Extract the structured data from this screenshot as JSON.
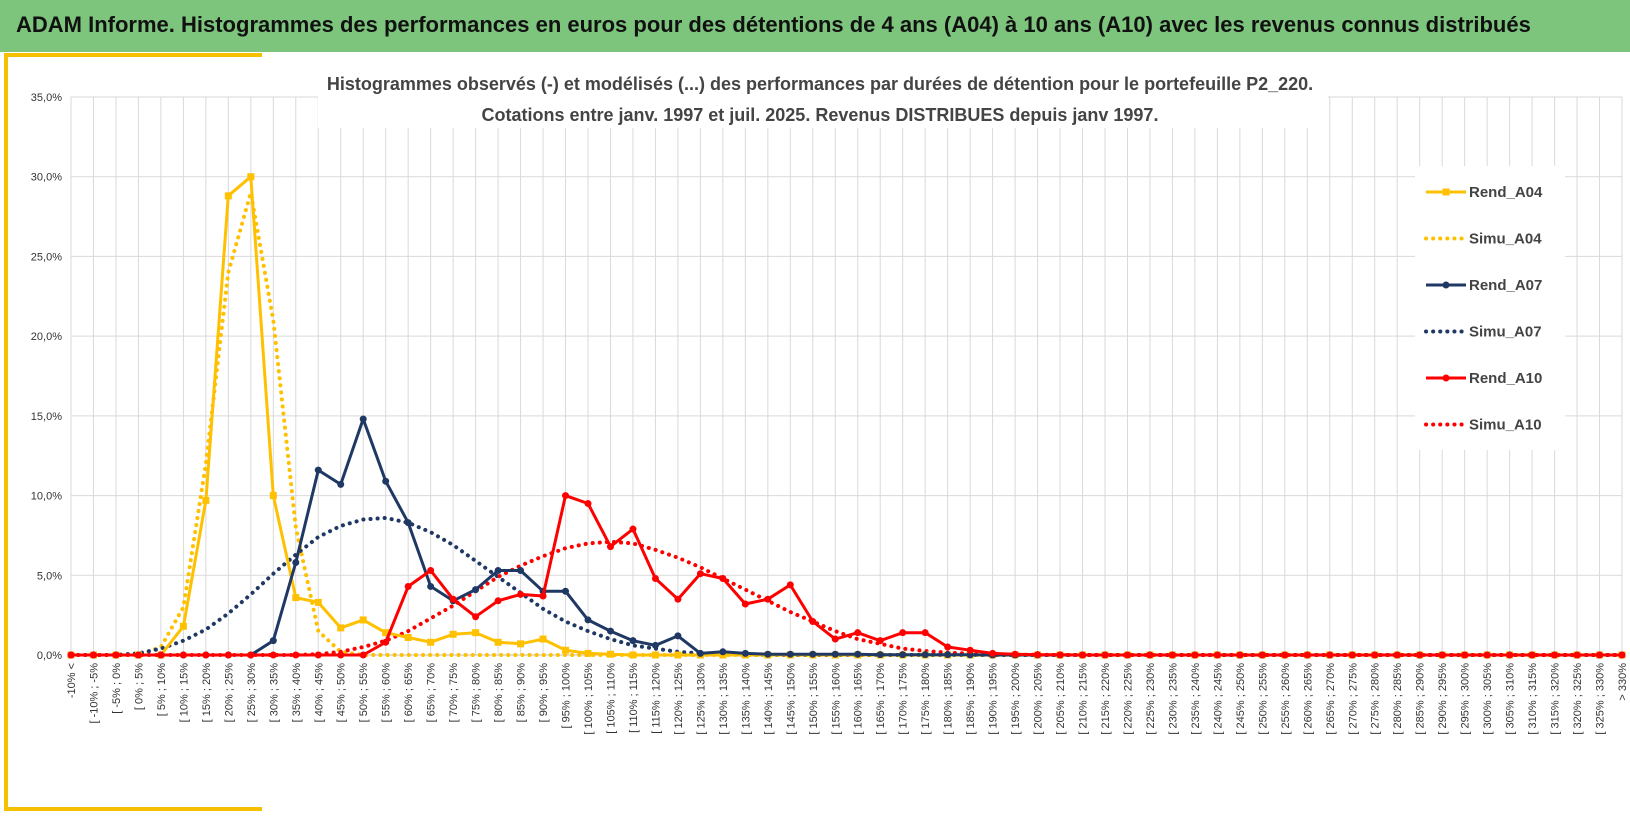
{
  "header": {
    "title": "ADAM Informe. Histogrammes des performances en euros pour des détentions de 4 ans (A04) à 10 ans (A10) avec les revenus connus distribués"
  },
  "colors": {
    "header_bg": "#7dc47d",
    "frame_accent": "#f5c000",
    "a04": "#ffc000",
    "a07": "#1f3864",
    "a10": "#ff0000",
    "grid": "#d9d9d9"
  },
  "chart_data": {
    "type": "line",
    "title_lines": [
      "Histogrammes observés (-) et modélisés (...) des performances par durées de détention pour le portefeuille P2_220.",
      "Cotations entre janv. 1997 et juil. 2025. Revenus DISTRIBUES depuis janv 1997."
    ],
    "ylim": [
      0,
      35
    ],
    "yticks": [
      0,
      5,
      10,
      15,
      20,
      25,
      30,
      35
    ],
    "ytick_labels": [
      "0,0%",
      "5,0%",
      "10,0%",
      "15,0%",
      "20,0%",
      "25,0%",
      "30,0%",
      "35,0%"
    ],
    "categories": [
      "-10% <",
      "[ -10% ; -5%",
      "[ -5% ; 0%",
      "[ 0% ; 5%",
      "[ 5% ; 10%",
      "[ 10% ; 15%",
      "[ 15% ; 20%",
      "[ 20% ; 25%",
      "[ 25% ; 30%",
      "[ 30% ; 35%",
      "[ 35% ; 40%",
      "[ 40% ; 45%",
      "[ 45% ; 50%",
      "[ 50% ; 55%",
      "[ 55% ; 60%",
      "[ 60% ; 65%",
      "[ 65% ; 70%",
      "[ 70% ; 75%",
      "[ 75% ; 80%",
      "[ 80% ; 85%",
      "[ 85% ; 90%",
      "[ 90% ; 95%",
      "[ 95% ; 100%",
      "[ 100% ; 105%",
      "[ 105% ; 110%",
      "[ 110% ; 115%",
      "[ 115% ; 120%",
      "[ 120% ; 125%",
      "[ 125% ; 130%",
      "[ 130% ; 135%",
      "[ 135% ; 140%",
      "[ 140% ; 145%",
      "[ 145% ; 150%",
      "[ 150% ; 155%",
      "[ 155% ; 160%",
      "[ 160% ; 165%",
      "[ 165% ; 170%",
      "[ 170% ; 175%",
      "[ 175% ; 180%",
      "[ 180% ; 185%",
      "[ 185% ; 190%",
      "[ 190% ; 195%",
      "[ 195% ; 200%",
      "[ 200% ; 205%",
      "[ 205% ; 210%",
      "[ 210% ; 215%",
      "[ 215% ; 220%",
      "[ 220% ; 225%",
      "[ 225% ; 230%",
      "[ 230% ; 235%",
      "[ 235% ; 240%",
      "[ 240% ; 245%",
      "[ 245% ; 250%",
      "[ 250% ; 255%",
      "[ 255% ; 260%",
      "[ 260% ; 265%",
      "[ 265% ; 270%",
      "[ 270% ; 275%",
      "[ 275% ; 280%",
      "[ 280% ; 285%",
      "[ 285% ; 290%",
      "[ 290% ; 295%",
      "[ 295% ; 300%",
      "[ 300% ; 305%",
      "[ 305% ; 310%",
      "[ 310% ; 315%",
      "[ 315% ; 320%",
      "[ 320% ; 325%",
      "[ 325% ; 330%",
      "> 330%"
    ],
    "series": [
      {
        "name": "Rend_A04",
        "style": "solid",
        "marker": "square",
        "color": "#ffc000",
        "values": [
          0,
          0,
          0,
          0,
          0,
          1.8,
          9.7,
          28.8,
          30.0,
          10.0,
          3.6,
          3.3,
          1.7,
          2.2,
          1.4,
          1.1,
          0.8,
          1.3,
          1.4,
          0.8,
          0.7,
          1.0,
          0.3,
          0.1,
          0.05,
          0,
          0,
          0,
          0,
          0,
          0,
          0,
          0,
          0,
          0,
          0,
          0,
          0,
          0,
          0,
          0,
          0,
          0,
          0,
          0,
          0,
          0,
          0,
          0,
          0,
          0,
          0,
          0,
          0,
          0,
          0,
          0,
          0,
          0,
          0,
          0,
          0,
          0,
          0,
          0,
          0,
          0,
          0,
          0,
          0
        ]
      },
      {
        "name": "Simu_A04",
        "style": "dotted",
        "marker": "none",
        "color": "#ffc000",
        "values": [
          0,
          0,
          0,
          0,
          0.5,
          3,
          12,
          24,
          29,
          21,
          8,
          1.5,
          0.2,
          0,
          0,
          0,
          0,
          0,
          0,
          0,
          0,
          0,
          0,
          0,
          0,
          0,
          0,
          0,
          0,
          0,
          0,
          0,
          0,
          0,
          0,
          0,
          0,
          0,
          0,
          0,
          0,
          0,
          0,
          0,
          0,
          0,
          0,
          0,
          0,
          0,
          0,
          0,
          0,
          0,
          0,
          0,
          0,
          0,
          0,
          0,
          0,
          0,
          0,
          0,
          0,
          0,
          0,
          0,
          0,
          0
        ]
      },
      {
        "name": "Rend_A07",
        "style": "solid",
        "marker": "circle",
        "color": "#1f3864",
        "values": [
          0,
          0,
          0,
          0,
          0,
          0,
          0,
          0,
          0,
          0.9,
          5.8,
          11.6,
          10.7,
          14.8,
          10.9,
          8.3,
          4.3,
          3.4,
          4.1,
          5.3,
          5.3,
          4.0,
          4.0,
          2.2,
          1.5,
          0.9,
          0.6,
          1.2,
          0.1,
          0.2,
          0.1,
          0.05,
          0.05,
          0.05,
          0.05,
          0.05,
          0.02,
          0.02,
          0.02,
          0.02,
          0.01,
          0,
          0,
          0,
          0,
          0,
          0,
          0,
          0,
          0,
          0,
          0,
          0,
          0,
          0,
          0,
          0,
          0,
          0,
          0,
          0,
          0,
          0,
          0,
          0,
          0,
          0,
          0,
          0,
          0
        ]
      },
      {
        "name": "Simu_A07",
        "style": "dotted",
        "marker": "none",
        "color": "#1f3864",
        "values": [
          0,
          0,
          0,
          0.1,
          0.4,
          0.9,
          1.6,
          2.6,
          3.8,
          5.1,
          6.3,
          7.4,
          8.1,
          8.5,
          8.6,
          8.3,
          7.7,
          6.9,
          5.9,
          4.9,
          3.9,
          2.9,
          2.1,
          1.5,
          1.0,
          0.6,
          0.4,
          0.2,
          0.1,
          0.05,
          0.02,
          0.01,
          0,
          0,
          0,
          0,
          0,
          0,
          0,
          0,
          0,
          0,
          0,
          0,
          0,
          0,
          0,
          0,
          0,
          0,
          0,
          0,
          0,
          0,
          0,
          0,
          0,
          0,
          0,
          0,
          0,
          0,
          0,
          0,
          0,
          0,
          0,
          0,
          0,
          0
        ]
      },
      {
        "name": "Rend_A10",
        "style": "solid",
        "marker": "circle",
        "color": "#ff0000",
        "values": [
          0,
          0,
          0,
          0,
          0,
          0,
          0,
          0,
          0,
          0,
          0,
          0,
          0,
          0,
          0.8,
          4.3,
          5.3,
          3.5,
          2.4,
          3.4,
          3.8,
          3.7,
          10.0,
          9.5,
          6.8,
          7.9,
          4.8,
          3.5,
          5.1,
          4.8,
          3.2,
          3.5,
          4.4,
          2.1,
          1.0,
          1.4,
          0.9,
          1.4,
          1.4,
          0.5,
          0.3,
          0.1,
          0.05,
          0.02,
          0.01,
          0,
          0,
          0,
          0,
          0,
          0,
          0,
          0,
          0,
          0,
          0,
          0,
          0,
          0,
          0,
          0,
          0,
          0,
          0,
          0,
          0,
          0,
          0,
          0,
          0
        ]
      },
      {
        "name": "Simu_A10",
        "style": "dotted",
        "marker": "none",
        "color": "#ff0000",
        "values": [
          0,
          0,
          0,
          0,
          0,
          0,
          0,
          0,
          0,
          0,
          0,
          0.05,
          0.2,
          0.5,
          0.9,
          1.5,
          2.3,
          3.1,
          4.0,
          4.9,
          5.6,
          6.2,
          6.7,
          7.0,
          7.1,
          7.0,
          6.6,
          6.1,
          5.5,
          4.8,
          4.1,
          3.4,
          2.7,
          2.1,
          1.5,
          1.0,
          0.7,
          0.4,
          0.25,
          0.15,
          0.08,
          0.04,
          0.02,
          0.01,
          0,
          0,
          0,
          0,
          0,
          0,
          0,
          0,
          0,
          0,
          0,
          0,
          0,
          0,
          0,
          0,
          0,
          0,
          0,
          0,
          0,
          0,
          0,
          0,
          0,
          0
        ]
      }
    ],
    "grid": true,
    "legend_position": "right"
  }
}
